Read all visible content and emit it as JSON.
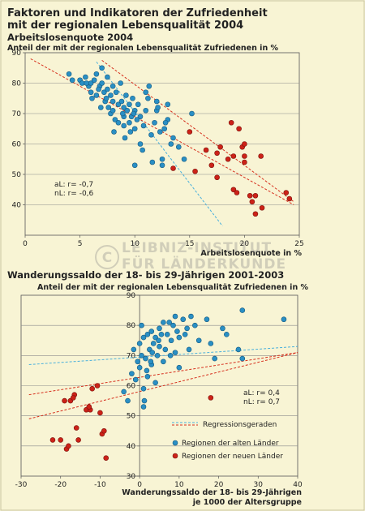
{
  "header": {
    "title_line1": "Faktoren und Indikatoren der Zufriedenheit",
    "title_line2": "mit der regionalen Lebensqualität 2004"
  },
  "watermark": {
    "line1": "LEIBNIZ-INSTITUT",
    "line2": "FÜR LÄNDERKUNDE"
  },
  "legend": {
    "regression": "Regressionsgeraden",
    "alte": "Regionen der alten Länder",
    "neue": "Regionen der neuen Länder"
  },
  "colors": {
    "background": "#f8f4d4",
    "alte": "#2a8fc4",
    "neue": "#cc2218",
    "alte_line": "#4ab0dc",
    "neue_line": "#d6301e",
    "grid": "#8a8a8a"
  },
  "chart_data": [
    {
      "type": "scatter",
      "title": "Arbeitslosenquote 2004",
      "ylabel": "Anteil der mit der regionalen Lebensqualität Zufriedenen in %",
      "xlabel": "Arbeitslosenquote in %",
      "xlim": [
        0,
        25
      ],
      "ylim": [
        30,
        90
      ],
      "xticks": [
        0,
        5,
        10,
        15,
        20,
        25
      ],
      "yticks": [
        40,
        50,
        60,
        70,
        80,
        90
      ],
      "grid": "horizontal",
      "annotation": [
        "aL: r= -0,7",
        "nL: r= -0,6"
      ],
      "regression": {
        "alte": [
          [
            6.5,
            87
          ],
          [
            18,
            33
          ]
        ],
        "neue": [
          [
            7,
            87.5
          ],
          [
            24.5,
            41
          ]
        ],
        "gesamt": [
          [
            0.5,
            88
          ],
          [
            24.5,
            40
          ]
        ]
      },
      "series": [
        {
          "name": "Regionen der alten Länder",
          "points": [
            [
              4,
              83
            ],
            [
              4.3,
              81
            ],
            [
              5,
              81
            ],
            [
              5.2,
              80
            ],
            [
              5.5,
              82
            ],
            [
              5.8,
              79
            ],
            [
              6,
              80
            ],
            [
              6,
              77
            ],
            [
              6.3,
              81
            ],
            [
              6.5,
              83
            ],
            [
              6.5,
              76
            ],
            [
              6.8,
              79
            ],
            [
              7,
              85
            ],
            [
              7,
              80
            ],
            [
              7.2,
              77
            ],
            [
              7.3,
              74
            ],
            [
              7.5,
              82
            ],
            [
              7.5,
              78
            ],
            [
              7.6,
              72
            ],
            [
              7.8,
              76
            ],
            [
              7.8,
              70
            ],
            [
              8,
              79
            ],
            [
              8,
              74
            ],
            [
              8,
              71
            ],
            [
              8.2,
              68
            ],
            [
              8.3,
              77
            ],
            [
              8.5,
              73
            ],
            [
              8.5,
              67
            ],
            [
              8.7,
              80
            ],
            [
              8.8,
              74
            ],
            [
              9,
              72
            ],
            [
              9,
              69
            ],
            [
              9,
              66
            ],
            [
              9.2,
              76
            ],
            [
              9.3,
              71
            ],
            [
              9.5,
              73
            ],
            [
              9.5,
              67
            ],
            [
              9.7,
              69
            ],
            [
              9.8,
              75
            ],
            [
              10,
              71
            ],
            [
              10,
              65
            ],
            [
              10,
              53
            ],
            [
              10.3,
              73
            ],
            [
              10.5,
              69
            ],
            [
              10.5,
              60
            ],
            [
              10.8,
              66
            ],
            [
              11,
              71
            ],
            [
              11,
              77
            ],
            [
              11.3,
              79
            ],
            [
              11.5,
              63
            ],
            [
              11.8,
              67
            ],
            [
              12,
              71
            ],
            [
              12,
              74
            ],
            [
              12.3,
              64
            ],
            [
              12.5,
              55
            ],
            [
              12.5,
              53
            ],
            [
              13,
              73
            ],
            [
              13,
              68
            ],
            [
              13.3,
              60
            ],
            [
              14,
              59
            ],
            [
              14.5,
              55
            ],
            [
              15.2,
              70
            ],
            [
              6.7,
              78
            ],
            [
              7.4,
              75
            ],
            [
              8.9,
              70
            ],
            [
              9.6,
              64
            ],
            [
              10.2,
              68
            ],
            [
              11.2,
              75
            ],
            [
              12.8,
              67
            ],
            [
              13.5,
              62
            ],
            [
              5.6,
              80
            ],
            [
              6.1,
              75
            ],
            [
              6.9,
              72
            ],
            [
              9.1,
              62
            ],
            [
              10.7,
              58
            ],
            [
              11.6,
              54
            ],
            [
              12.1,
              72
            ],
            [
              12.7,
              65
            ],
            [
              8.1,
              64
            ],
            [
              9.9,
              70
            ]
          ]
        },
        {
          "name": "Regionen der neuen Länder",
          "points": [
            [
              13.5,
              52
            ],
            [
              15,
              64
            ],
            [
              15.5,
              51
            ],
            [
              16.5,
              58
            ],
            [
              17,
              53
            ],
            [
              17.5,
              57
            ],
            [
              17.5,
              49
            ],
            [
              17.8,
              59
            ],
            [
              18.5,
              55
            ],
            [
              18.8,
              67
            ],
            [
              19,
              56
            ],
            [
              19,
              45
            ],
            [
              19.5,
              65
            ],
            [
              19.8,
              59
            ],
            [
              20,
              54
            ],
            [
              20,
              60
            ],
            [
              20.5,
              43
            ],
            [
              20.7,
              41
            ],
            [
              21,
              43
            ],
            [
              21,
              37
            ],
            [
              21.5,
              56
            ],
            [
              21.6,
              39
            ],
            [
              23.8,
              44
            ],
            [
              24.1,
              42
            ],
            [
              20,
              56
            ],
            [
              19.3,
              44
            ]
          ]
        }
      ]
    },
    {
      "type": "scatter",
      "title": "Wanderungssaldo der 18- bis 29-Jährigen 2001-2003",
      "ylabel": "Anteil der mit der regionalen Lebensqualität Zufriedenen in %",
      "xlabel_line1": "Wanderungssaldo der 18- bis 29-Jährigen",
      "xlabel_line2": "je 1000 der Altersgruppe",
      "xlim": [
        -30,
        40
      ],
      "ylim": [
        30,
        90
      ],
      "xticks": [
        -30,
        -20,
        -10,
        0,
        10,
        20,
        30,
        40
      ],
      "yticks": [
        30,
        40,
        50,
        60,
        70,
        80,
        90
      ],
      "grid": "horizontal",
      "annotation": [
        "aL: r= 0,4",
        "nL: r= 0,7"
      ],
      "regression": {
        "alte": [
          [
            -28,
            67
          ],
          [
            40,
            73
          ]
        ],
        "neue": [
          [
            -28,
            57
          ],
          [
            40,
            71
          ]
        ],
        "gesamt": [
          [
            -28,
            49
          ],
          [
            40,
            71
          ]
        ]
      },
      "series": [
        {
          "name": "Regionen der alten Länder",
          "points": [
            [
              -4,
              58
            ],
            [
              -3,
              55
            ],
            [
              -2,
              64
            ],
            [
              -1.5,
              72
            ],
            [
              -1,
              62
            ],
            [
              -0.5,
              68
            ],
            [
              0,
              74
            ],
            [
              0,
              66
            ],
            [
              0.5,
              80
            ],
            [
              0.5,
              70
            ],
            [
              1,
              76
            ],
            [
              1,
              59
            ],
            [
              1,
              53
            ],
            [
              1.5,
              69
            ],
            [
              2,
              77
            ],
            [
              2,
              63
            ],
            [
              2.5,
              72
            ],
            [
              3,
              78
            ],
            [
              3,
              67
            ],
            [
              3.5,
              74
            ],
            [
              4,
              76
            ],
            [
              4,
              61
            ],
            [
              4.5,
              70
            ],
            [
              5,
              79
            ],
            [
              5,
              73
            ],
            [
              6,
              81
            ],
            [
              6,
              68
            ],
            [
              7,
              77
            ],
            [
              7.5,
              81
            ],
            [
              8,
              75
            ],
            [
              8.5,
              80
            ],
            [
              9,
              83
            ],
            [
              9,
              71
            ],
            [
              10,
              76
            ],
            [
              10,
              66
            ],
            [
              11,
              82
            ],
            [
              11.5,
              77
            ],
            [
              12,
              79
            ],
            [
              12.5,
              72
            ],
            [
              13,
              83
            ],
            [
              14,
              80
            ],
            [
              15,
              75
            ],
            [
              17,
              82
            ],
            [
              18,
              74
            ],
            [
              19,
              69
            ],
            [
              21,
              79
            ],
            [
              22,
              77
            ],
            [
              25,
              72
            ],
            [
              26,
              85
            ],
            [
              26,
              69
            ],
            [
              36.5,
              82
            ],
            [
              1.8,
              65
            ],
            [
              3.2,
              71
            ],
            [
              4.8,
              75
            ],
            [
              6.5,
              72
            ],
            [
              7.8,
              70
            ],
            [
              2.8,
              68
            ],
            [
              5.5,
              77
            ],
            [
              9.5,
              78
            ],
            [
              1.2,
              55
            ]
          ]
        },
        {
          "name": "Regionen der neuen Länder",
          "points": [
            [
              -22,
              42
            ],
            [
              -20,
              42
            ],
            [
              -19,
              55
            ],
            [
              -18.5,
              39
            ],
            [
              -18,
              40
            ],
            [
              -17.5,
              55
            ],
            [
              -16.5,
              57
            ],
            [
              -16,
              46
            ],
            [
              -15.5,
              42
            ],
            [
              -13.5,
              52
            ],
            [
              -12.5,
              52
            ],
            [
              -12,
              59
            ],
            [
              -10,
              51
            ],
            [
              -9.5,
              44
            ],
            [
              -9,
              45
            ],
            [
              -8.5,
              36
            ],
            [
              18,
              56
            ],
            [
              -16.8,
              56
            ],
            [
              -10.7,
              60
            ],
            [
              -12.8,
              53
            ]
          ]
        }
      ]
    }
  ]
}
